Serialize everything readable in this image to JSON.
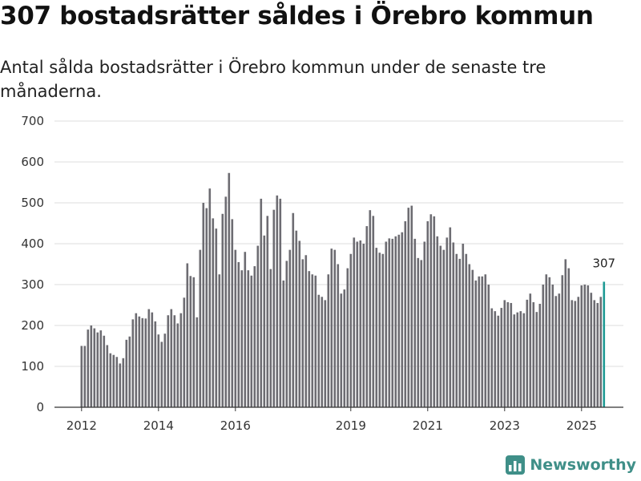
{
  "title": "307 bostadsrätter såldes i Örebro kommun",
  "subtitle": "Antal sålda bostadsrätter i Örebro kommun under de senaste tre månaderna.",
  "brand": {
    "name": "Newsworthy",
    "icon": "bar-chart-logo-icon"
  },
  "colors": {
    "bar": "#6d6c72",
    "highlight": "#1e9a94",
    "grid": "#dddddd",
    "brand": "#3f8f88"
  },
  "chart_data": {
    "type": "bar",
    "title": "307 bostadsrätter såldes i Örebro kommun",
    "xlabel": "",
    "ylabel": "",
    "ylim": [
      0,
      700
    ],
    "yticks": [
      0,
      100,
      200,
      300,
      400,
      500,
      600,
      700
    ],
    "xticks": [
      "2012",
      "2014",
      "2016",
      "2019",
      "2021",
      "2023",
      "2025"
    ],
    "start": "2012-01",
    "highlight_label": "307",
    "values": [
      150,
      150,
      190,
      200,
      193,
      183,
      188,
      175,
      152,
      132,
      128,
      123,
      107,
      120,
      165,
      173,
      215,
      230,
      222,
      218,
      217,
      240,
      232,
      210,
      178,
      160,
      180,
      225,
      240,
      225,
      205,
      230,
      268,
      352,
      321,
      318,
      220,
      385,
      500,
      487,
      535,
      462,
      437,
      325,
      473,
      515,
      573,
      460,
      385,
      355,
      335,
      380,
      335,
      322,
      345,
      395,
      510,
      420,
      468,
      338,
      483,
      518,
      510,
      310,
      358,
      385,
      475,
      432,
      407,
      362,
      372,
      333,
      325,
      322,
      275,
      270,
      262,
      325,
      388,
      385,
      350,
      278,
      288,
      340,
      375,
      415,
      405,
      408,
      400,
      443,
      482,
      468,
      390,
      378,
      375,
      405,
      413,
      412,
      418,
      422,
      428,
      455,
      488,
      493,
      412,
      365,
      360,
      405,
      455,
      472,
      467,
      418,
      395,
      385,
      415,
      440,
      403,
      375,
      363,
      400,
      375,
      350,
      336,
      310,
      320,
      320,
      325,
      300,
      242,
      235,
      224,
      243,
      262,
      257,
      255,
      227,
      232,
      235,
      230,
      263,
      278,
      257,
      233,
      253,
      300,
      325,
      318,
      300,
      272,
      278,
      323,
      362,
      340,
      262,
      260,
      270,
      298,
      300,
      298,
      280,
      262,
      255,
      270,
      307
    ]
  }
}
